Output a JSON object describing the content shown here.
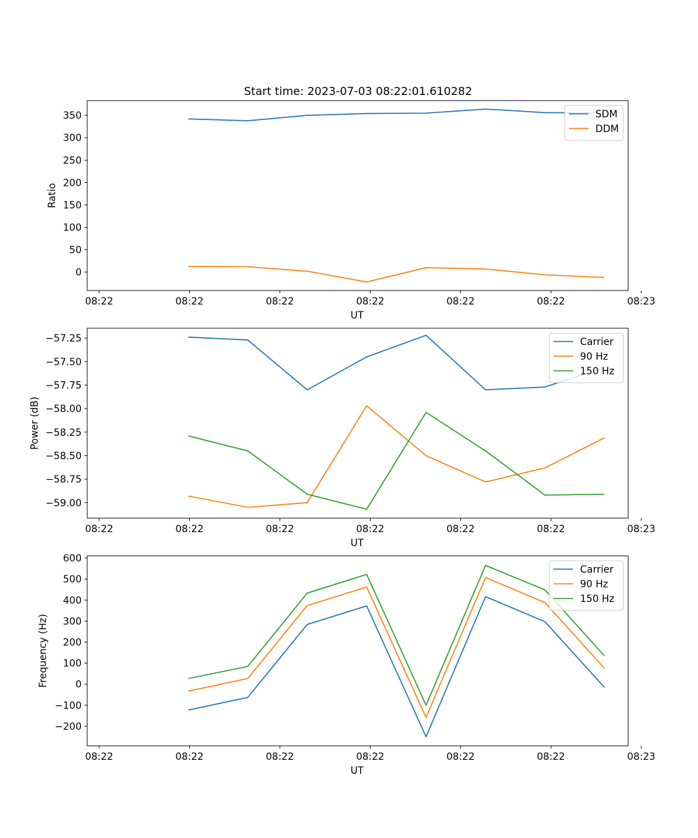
{
  "figure_title": "Start time: 2023-07-03 08:22:01.610282",
  "colors": {
    "blue": "#1f77b4",
    "orange": "#ff7f0e",
    "green": "#2ca02c"
  },
  "chart_data": [
    {
      "type": "line",
      "title": "Start time: 2023-07-03 08:22:01.610282",
      "xlabel": "UT",
      "ylabel": "Ratio",
      "x": [
        1,
        2,
        3,
        4,
        5,
        6,
        7,
        8
      ],
      "xlim": [
        -0.7,
        8.4
      ],
      "x_ticks": [
        -0.5,
        1.02,
        2.54,
        4.06,
        5.58,
        7.1,
        8.62
      ],
      "x_tick_labels": [
        "08:22",
        "08:22",
        "08:22",
        "08:22",
        "08:22",
        "08:22",
        "08:23"
      ],
      "ylim": [
        -41,
        383
      ],
      "y_ticks": [
        0,
        50,
        100,
        150,
        200,
        250,
        300,
        350
      ],
      "y_tick_labels": [
        "0",
        "50",
        "100",
        "150",
        "200",
        "250",
        "300",
        "350"
      ],
      "legend_position": "top-right",
      "series": [
        {
          "name": "SDM",
          "color": "#1f77b4",
          "values": [
            342,
            338,
            350,
            354,
            355,
            364,
            356,
            355
          ]
        },
        {
          "name": "DDM",
          "color": "#ff7f0e",
          "values": [
            13,
            12,
            2,
            -22,
            10,
            7,
            -6,
            -12
          ]
        }
      ]
    },
    {
      "type": "line",
      "title": "",
      "xlabel": "UT",
      "ylabel": "Power (dB)",
      "x": [
        1,
        2,
        3,
        4,
        5,
        6,
        7,
        8
      ],
      "xlim": [
        -0.7,
        8.4
      ],
      "x_ticks": [
        -0.5,
        1.02,
        2.54,
        4.06,
        5.58,
        7.1,
        8.62
      ],
      "x_tick_labels": [
        "08:22",
        "08:22",
        "08:22",
        "08:22",
        "08:22",
        "08:22",
        "08:23"
      ],
      "ylim": [
        -59.165,
        -57.145
      ],
      "y_ticks": [
        -57.25,
        -57.5,
        -57.75,
        -58.0,
        -58.25,
        -58.5,
        -58.75,
        -59.0
      ],
      "y_tick_labels": [
        "−57.25",
        "−57.50",
        "−57.75",
        "−58.00",
        "−58.25",
        "−58.50",
        "−58.75",
        "−59.00"
      ],
      "legend_position": "top-right",
      "series": [
        {
          "name": "Carrier",
          "color": "#1f77b4",
          "values": [
            -57.24,
            -57.27,
            -57.8,
            -57.45,
            -57.22,
            -57.8,
            -57.77,
            -57.56
          ]
        },
        {
          "name": "90 Hz",
          "color": "#ff7f0e",
          "values": [
            -58.93,
            -59.05,
            -59.0,
            -57.97,
            -58.5,
            -58.78,
            -58.63,
            -58.31
          ]
        },
        {
          "name": "150 Hz",
          "color": "#2ca02c",
          "values": [
            -58.29,
            -58.45,
            -58.91,
            -59.07,
            -58.04,
            -58.45,
            -58.92,
            -58.91
          ]
        }
      ]
    },
    {
      "type": "line",
      "title": "",
      "xlabel": "UT",
      "ylabel": "Frequency (Hz)",
      "x": [
        1,
        2,
        3,
        4,
        5,
        6,
        7,
        8
      ],
      "xlim": [
        -0.7,
        8.4
      ],
      "x_ticks": [
        -0.5,
        1.02,
        2.54,
        4.06,
        5.58,
        7.1,
        8.62
      ],
      "x_tick_labels": [
        "08:22",
        "08:22",
        "08:22",
        "08:22",
        "08:22",
        "08:22",
        "08:23"
      ],
      "ylim": [
        -293,
        610
      ],
      "y_ticks": [
        600,
        500,
        400,
        300,
        200,
        100,
        0,
        -100,
        -200
      ],
      "y_tick_labels": [
        "600",
        "500",
        "400",
        "300",
        "200",
        "100",
        "0",
        "−100",
        "−200"
      ],
      "legend_position": "top-right",
      "series": [
        {
          "name": "Carrier",
          "color": "#1f77b4",
          "values": [
            -123,
            -63,
            284,
            372,
            -250,
            416,
            297,
            -15
          ]
        },
        {
          "name": "90 Hz",
          "color": "#ff7f0e",
          "values": [
            -33,
            27,
            374,
            462,
            -158,
            507,
            388,
            76
          ]
        },
        {
          "name": "150 Hz",
          "color": "#2ca02c",
          "values": [
            27,
            84,
            433,
            522,
            -100,
            565,
            448,
            135
          ]
        }
      ]
    }
  ]
}
